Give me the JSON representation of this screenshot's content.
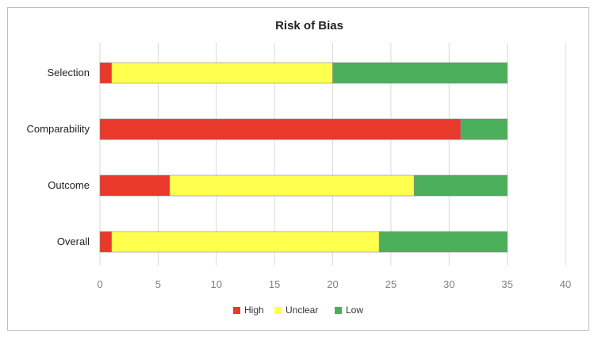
{
  "chart_data": {
    "type": "bar",
    "orientation": "horizontal",
    "stacked": true,
    "title": "Risk of Bias",
    "categories": [
      "Selection",
      "Comparability",
      "Outcome",
      "Overall"
    ],
    "series": [
      {
        "name": "High",
        "color": "#e8392b",
        "values": [
          1,
          31,
          6,
          1
        ]
      },
      {
        "name": "Unclear",
        "color": "#ffff4d",
        "values": [
          19,
          0,
          21,
          23
        ]
      },
      {
        "name": "Low",
        "color": "#4caf5c",
        "values": [
          15,
          4,
          8,
          11
        ]
      }
    ],
    "xlim": [
      0,
      40
    ],
    "xticks": [
      0,
      5,
      10,
      15,
      20,
      25,
      30,
      35,
      40
    ],
    "grid": "vertical",
    "legend_position": "bottom"
  }
}
